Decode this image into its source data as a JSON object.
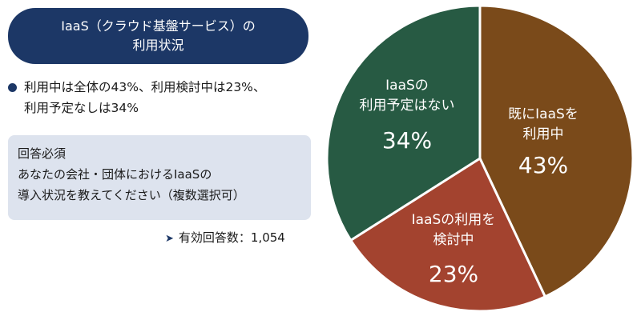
{
  "title": {
    "line1": "IaaS（クラウド基盤サービス）の",
    "line2": "利用状況"
  },
  "summary": {
    "line1": "利用中は全体の43%、利用検討中は23%、",
    "line2": "利用予定なしは34%"
  },
  "question": {
    "heading": "回答必須",
    "line1": "あなたの会社・団体におけるIaaSの",
    "line2": "導入状況を教えてください（複数選択可）"
  },
  "respondents": "有効回答数：1,054",
  "chart_data": {
    "type": "pie",
    "slices": [
      {
        "label_lines": [
          "既にIaaSを",
          "利用中"
        ],
        "value": 43,
        "value_label": "43%",
        "color": "#7a4a1a"
      },
      {
        "label_lines": [
          "IaaSの利用を",
          "検討中"
        ],
        "value": 23,
        "value_label": "23%",
        "color": "#a3432f"
      },
      {
        "label_lines": [
          "IaaSの",
          "利用予定はない"
        ],
        "value": 34,
        "value_label": "34%",
        "color": "#275a43"
      }
    ]
  }
}
